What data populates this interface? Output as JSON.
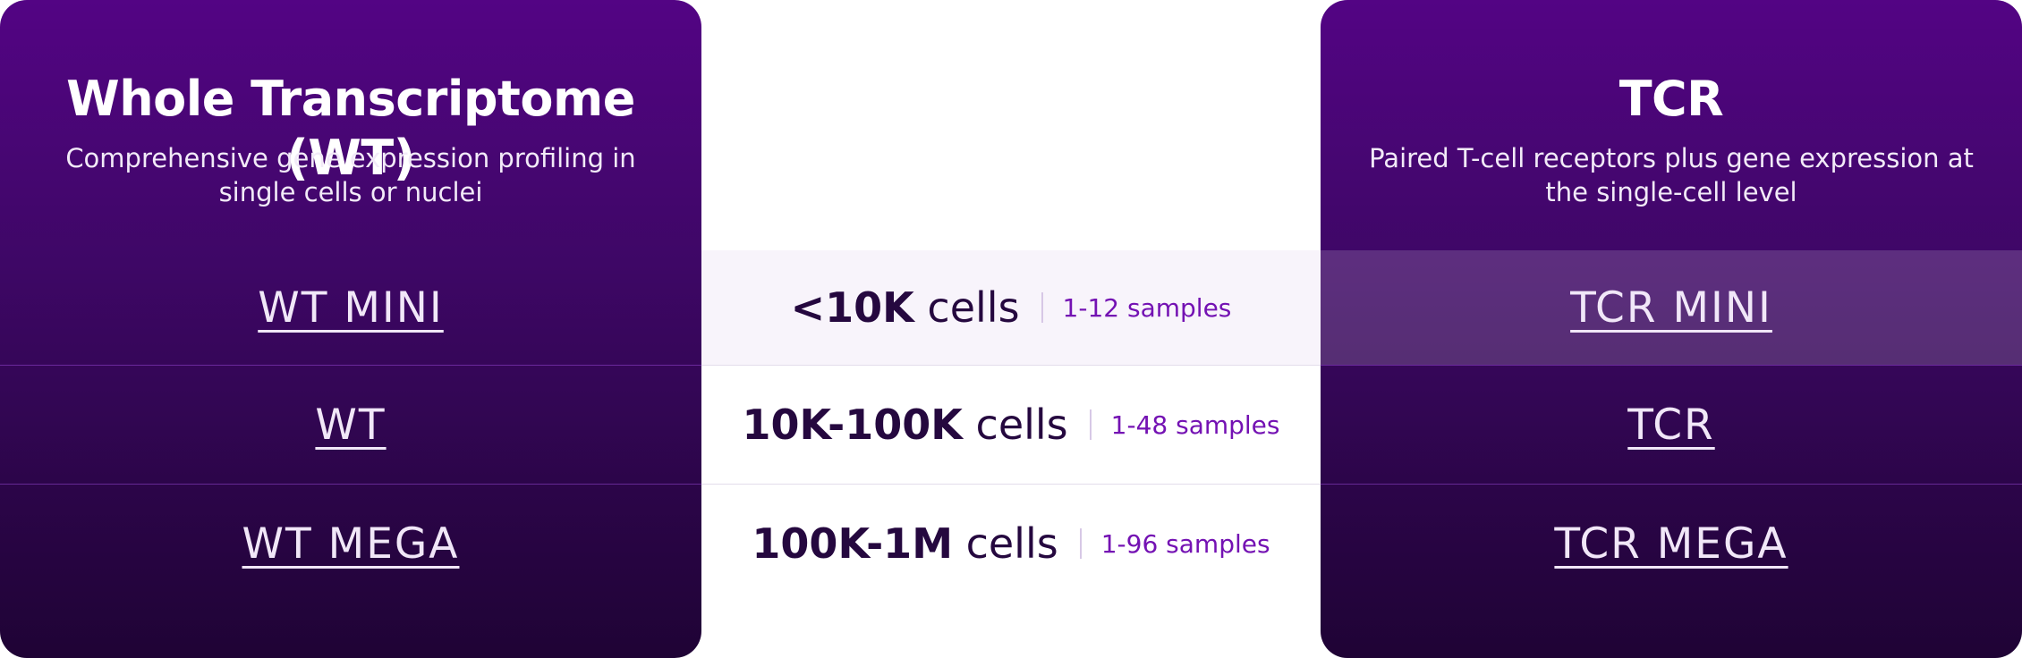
{
  "left_panel": {
    "title": "Whole Transcriptome (WT)",
    "subtitle": "Comprehensive gene expression profiling in single cells or nuclei",
    "products": [
      "WT MINI",
      "WT",
      "WT MEGA"
    ]
  },
  "right_panel": {
    "title": "TCR",
    "subtitle": "Paired T-cell receptors plus gene expression at the single-cell level",
    "products": [
      "TCR MINI",
      "TCR",
      "TCR MEGA"
    ]
  },
  "scale_rows": [
    {
      "cells_value": "<10K",
      "cells_unit": "cells",
      "samples": "1-12 samples"
    },
    {
      "cells_value": "10K-100K",
      "cells_unit": "cells",
      "samples": "1-48 samples"
    },
    {
      "cells_value": "100K-1M",
      "cells_unit": "cells",
      "samples": "1-96 samples"
    }
  ],
  "colors": {
    "panel_top": "#530484",
    "panel_bottom": "#1f0335",
    "samples_text": "#7412b3",
    "cells_text": "#25083f",
    "highlight_row": "#f8f4fb"
  },
  "highlighted_row": 0
}
